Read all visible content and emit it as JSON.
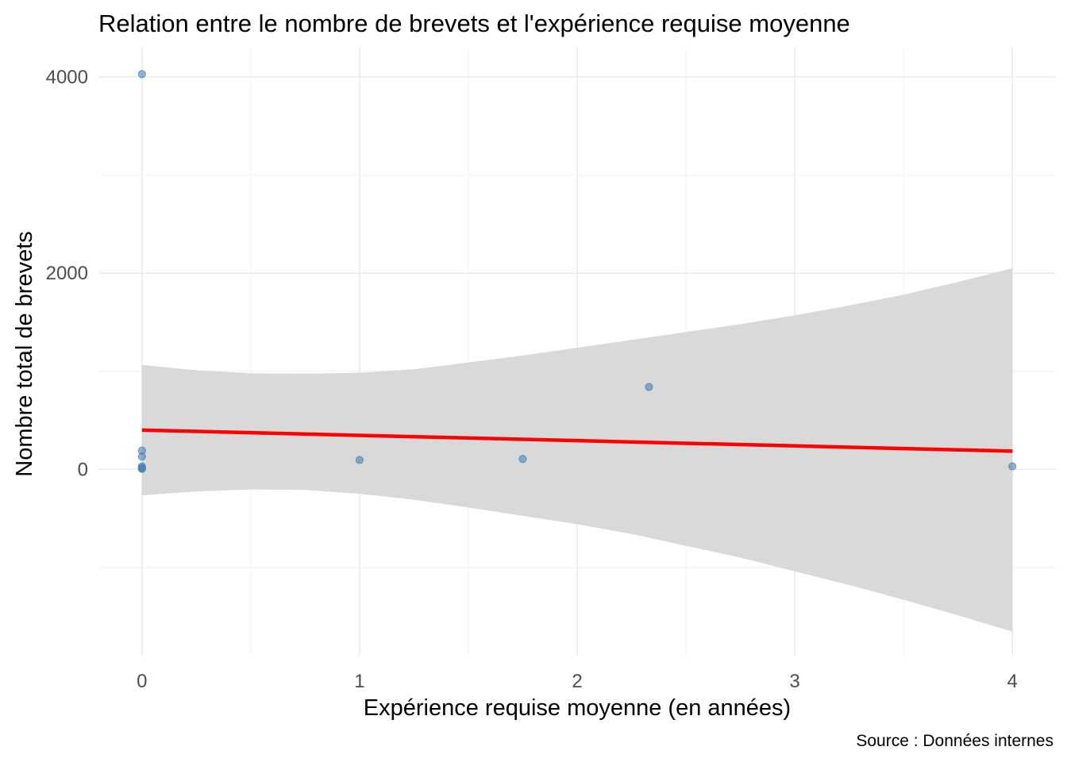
{
  "chart_data": {
    "type": "scatter",
    "title": "Relation entre le nombre de brevets et l'expérience requise moyenne",
    "xlabel": "Expérience requise moyenne (en années)",
    "ylabel": "Nombre total de brevets",
    "caption": "Source : Données internes",
    "xlim": [
      -0.2,
      4.2
    ],
    "ylim": [
      -1900,
      4300
    ],
    "x_ticks": [
      0,
      1,
      2,
      3,
      4
    ],
    "x_tick_labels": [
      "0",
      "1",
      "2",
      "3",
      "4"
    ],
    "x_minor_ticks": [
      0.5,
      1.5,
      2.5,
      3.5
    ],
    "y_ticks": [
      0,
      2000,
      4000
    ],
    "y_tick_labels": [
      "0",
      "2000",
      "4000"
    ],
    "y_minor_ticks": [
      -1000,
      1000,
      3000
    ],
    "grid": true,
    "legend": "none",
    "points": {
      "name": "Observations",
      "color": "#4682b4",
      "x": [
        0,
        0,
        0,
        0,
        0,
        0,
        0,
        1,
        1.75,
        2.33,
        4
      ],
      "y": [
        4030,
        190,
        130,
        30,
        15,
        10,
        5,
        95,
        105,
        840,
        30
      ]
    },
    "regression": {
      "name": "Régression linéaire",
      "color": "#ff0000",
      "x": [
        0,
        4
      ],
      "y": [
        400,
        185
      ]
    },
    "confidence_band": {
      "name": "Intervalle de confiance 95%",
      "color": "#d9d9d9",
      "x": [
        0,
        0.25,
        0.5,
        0.75,
        1,
        1.25,
        1.5,
        1.75,
        2,
        2.25,
        2.5,
        2.75,
        3,
        3.25,
        3.5,
        3.75,
        4
      ],
      "upper": [
        1065,
        1010,
        980,
        975,
        985,
        1020,
        1090,
        1160,
        1240,
        1320,
        1400,
        1480,
        1570,
        1670,
        1780,
        1910,
        2050
      ],
      "lower": [
        -265,
        -225,
        -205,
        -210,
        -250,
        -310,
        -390,
        -475,
        -560,
        -660,
        -780,
        -900,
        -1040,
        -1180,
        -1330,
        -1490,
        -1655
      ]
    }
  }
}
